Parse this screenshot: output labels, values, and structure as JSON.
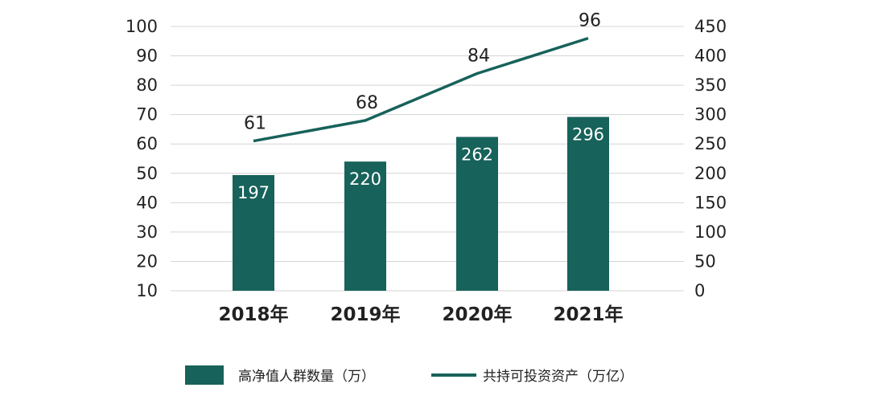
{
  "chart_data": {
    "type": "bar",
    "categories": [
      "2018年",
      "2019年",
      "2020年",
      "2021年"
    ],
    "series": [
      {
        "name": "高净值人群数量（万）",
        "type": "bar",
        "axis": "right",
        "values": [
          197,
          220,
          262,
          296
        ],
        "color": "#17625a"
      },
      {
        "name": "共持可投资资产（万亿）",
        "type": "line",
        "axis": "left",
        "values": [
          61,
          68,
          84,
          96
        ],
        "color": "#17625a"
      }
    ],
    "left_axis": {
      "ylim": [
        10,
        100
      ],
      "ticks": [
        "100",
        "90",
        "80",
        "70",
        "60",
        "50",
        "40",
        "30",
        "20",
        "10"
      ]
    },
    "right_axis": {
      "ylim": [
        0,
        450
      ],
      "ticks": [
        "450",
        "400",
        "350",
        "300",
        "250",
        "200",
        "150",
        "100",
        "50",
        "0"
      ]
    },
    "grid": true,
    "legend_position": "bottom",
    "title": "",
    "xlabel": "",
    "ylabel": ""
  }
}
